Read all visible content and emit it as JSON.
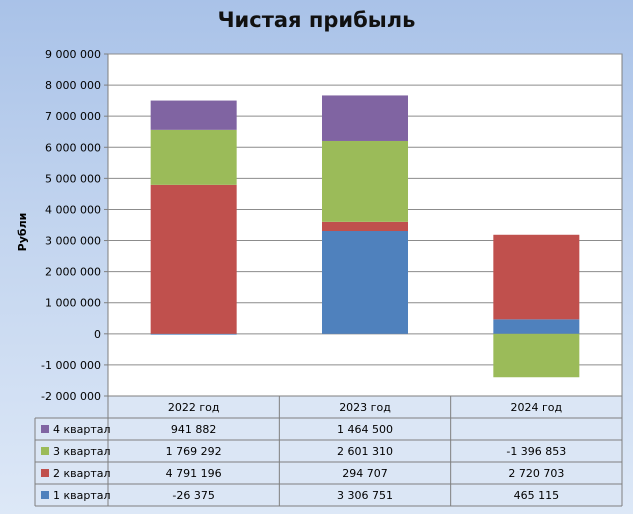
{
  "chart_data": {
    "type": "bar",
    "stacked": true,
    "title": "Чистая прибыль",
    "ylabel": "Рубли",
    "xlabel": "",
    "ylim": [
      -2000000,
      9000000
    ],
    "y_ticks": [
      "9 000 000",
      "8 000 000",
      "7 000 000",
      "6 000 000",
      "5 000 000",
      "4 000 000",
      "3 000 000",
      "2 000 000",
      "1 000 000",
      "0",
      "-1 000 000",
      "-2 000 000"
    ],
    "y_tick_values": [
      9000000,
      8000000,
      7000000,
      6000000,
      5000000,
      4000000,
      3000000,
      2000000,
      1000000,
      0,
      -1000000,
      -2000000
    ],
    "grid": true,
    "legend_placement": "data-table",
    "categories": [
      "2022 год",
      "2023 год",
      "2024 год"
    ],
    "series": [
      {
        "name": "1 квартал",
        "color": "#4f81bd",
        "values": [
          -26375,
          3306751,
          465115
        ],
        "labels": [
          "-26 375",
          "3 306 751",
          "465 115"
        ]
      },
      {
        "name": "2 квартал",
        "color": "#c0504d",
        "values": [
          4791196,
          294707,
          2720703
        ],
        "labels": [
          "4 791 196",
          "294 707",
          "2 720 703"
        ]
      },
      {
        "name": "3 квартал",
        "color": "#9bbb59",
        "values": [
          1769292,
          2601310,
          -1396853
        ],
        "labels": [
          "1 769 292",
          "2 601 310",
          "-1 396 853"
        ]
      },
      {
        "name": "4 квартал",
        "color": "#8064a2",
        "values": [
          941882,
          1464500,
          null
        ],
        "labels": [
          "941 882",
          "1 464 500",
          ""
        ]
      }
    ]
  }
}
